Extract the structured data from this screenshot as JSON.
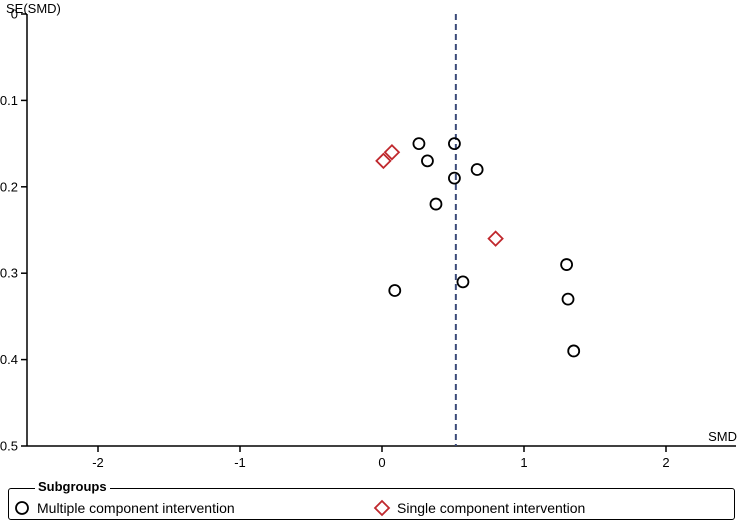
{
  "chart_data": {
    "type": "scatter",
    "title": "",
    "xlabel": "SMD",
    "ylabel": "SE(SMD)",
    "xlim": [
      -2.5,
      2.5
    ],
    "ylim": [
      0,
      0.5
    ],
    "y_inverted": true,
    "x_ticks": [
      "-2",
      "-1",
      "0",
      "1",
      "2"
    ],
    "y_ticks": [
      "0",
      "0.1",
      "0.2",
      "0.3",
      "0.4",
      "0.5"
    ],
    "reference_line_x": 0.52,
    "grid": false,
    "legend": {
      "title": "Subgroups",
      "placement": "bottom",
      "entries": [
        {
          "label": "Multiple component intervention",
          "marker": "circle",
          "color": "#000000"
        },
        {
          "label": "Single component intervention",
          "marker": "diamond",
          "color": "#c0282d"
        }
      ]
    },
    "series": [
      {
        "name": "Multiple component intervention",
        "marker": "circle",
        "color": "#000000",
        "points": [
          {
            "x": 0.26,
            "y": 0.15
          },
          {
            "x": 0.51,
            "y": 0.15
          },
          {
            "x": 0.32,
            "y": 0.17
          },
          {
            "x": 0.67,
            "y": 0.18
          },
          {
            "x": 0.51,
            "y": 0.19
          },
          {
            "x": 0.38,
            "y": 0.22
          },
          {
            "x": 1.3,
            "y": 0.29
          },
          {
            "x": 0.57,
            "y": 0.31
          },
          {
            "x": 0.09,
            "y": 0.32
          },
          {
            "x": 1.31,
            "y": 0.33
          },
          {
            "x": 1.35,
            "y": 0.39
          }
        ]
      },
      {
        "name": "Single component intervention",
        "marker": "diamond",
        "color": "#c0282d",
        "points": [
          {
            "x": 0.07,
            "y": 0.16
          },
          {
            "x": 0.01,
            "y": 0.17
          },
          {
            "x": 0.8,
            "y": 0.26
          }
        ]
      }
    ]
  }
}
